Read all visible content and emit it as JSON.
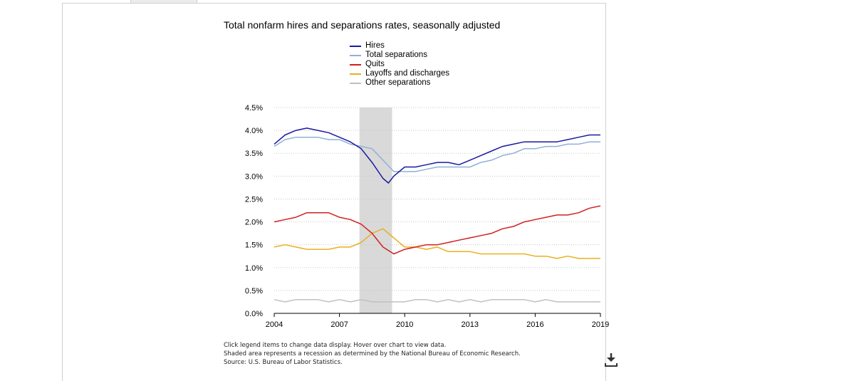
{
  "chart_data": {
    "type": "line",
    "title": "Total nonfarm hires and separations rates, seasonally adjusted",
    "xlabel": "",
    "ylabel": "",
    "x_ticks": [
      "2004",
      "2007",
      "2010",
      "2013",
      "2016",
      "2019"
    ],
    "y_ticks": [
      "0.0%",
      "0.5%",
      "1.0%",
      "1.5%",
      "2.0%",
      "2.5%",
      "3.0%",
      "3.5%",
      "4.0%",
      "4.5%"
    ],
    "xlim": [
      2004,
      2019
    ],
    "ylim": [
      0,
      4.5
    ],
    "recession": [
      2007.92,
      2009.42
    ],
    "grid": "horizontal dotted",
    "legend_position": "top",
    "series": [
      {
        "name": "Hires",
        "color": "#1a1aa0",
        "points": [
          [
            2004,
            3.7
          ],
          [
            2004.5,
            3.9
          ],
          [
            2005,
            4.0
          ],
          [
            2005.5,
            4.05
          ],
          [
            2006,
            4.0
          ],
          [
            2006.5,
            3.95
          ],
          [
            2007,
            3.85
          ],
          [
            2007.5,
            3.75
          ],
          [
            2008,
            3.6
          ],
          [
            2008.5,
            3.3
          ],
          [
            2009,
            2.95
          ],
          [
            2009.25,
            2.85
          ],
          [
            2009.5,
            3.0
          ],
          [
            2010,
            3.2
          ],
          [
            2010.5,
            3.2
          ],
          [
            2011,
            3.25
          ],
          [
            2011.5,
            3.3
          ],
          [
            2012,
            3.3
          ],
          [
            2012.5,
            3.25
          ],
          [
            2013,
            3.35
          ],
          [
            2013.5,
            3.45
          ],
          [
            2014,
            3.55
          ],
          [
            2014.5,
            3.65
          ],
          [
            2015,
            3.7
          ],
          [
            2015.5,
            3.75
          ],
          [
            2016,
            3.75
          ],
          [
            2016.5,
            3.75
          ],
          [
            2017,
            3.75
          ],
          [
            2017.5,
            3.8
          ],
          [
            2018,
            3.85
          ],
          [
            2018.5,
            3.9
          ],
          [
            2019,
            3.9
          ]
        ]
      },
      {
        "name": "Total separations",
        "color": "#8fb0d8",
        "points": [
          [
            2004,
            3.65
          ],
          [
            2004.5,
            3.8
          ],
          [
            2005,
            3.85
          ],
          [
            2005.5,
            3.85
          ],
          [
            2006,
            3.85
          ],
          [
            2006.5,
            3.8
          ],
          [
            2007,
            3.8
          ],
          [
            2007.5,
            3.7
          ],
          [
            2008,
            3.65
          ],
          [
            2008.5,
            3.6
          ],
          [
            2009,
            3.35
          ],
          [
            2009.5,
            3.1
          ],
          [
            2010,
            3.1
          ],
          [
            2010.5,
            3.1
          ],
          [
            2011,
            3.15
          ],
          [
            2011.5,
            3.2
          ],
          [
            2012,
            3.2
          ],
          [
            2012.5,
            3.2
          ],
          [
            2013,
            3.2
          ],
          [
            2013.5,
            3.3
          ],
          [
            2014,
            3.35
          ],
          [
            2014.5,
            3.45
          ],
          [
            2015,
            3.5
          ],
          [
            2015.5,
            3.6
          ],
          [
            2016,
            3.6
          ],
          [
            2016.5,
            3.65
          ],
          [
            2017,
            3.65
          ],
          [
            2017.5,
            3.7
          ],
          [
            2018,
            3.7
          ],
          [
            2018.5,
            3.75
          ],
          [
            2019,
            3.75
          ]
        ]
      },
      {
        "name": "Quits",
        "color": "#d02020",
        "points": [
          [
            2004,
            2.0
          ],
          [
            2004.5,
            2.05
          ],
          [
            2005,
            2.1
          ],
          [
            2005.5,
            2.2
          ],
          [
            2006,
            2.2
          ],
          [
            2006.5,
            2.2
          ],
          [
            2007,
            2.1
          ],
          [
            2007.5,
            2.05
          ],
          [
            2008,
            1.95
          ],
          [
            2008.5,
            1.75
          ],
          [
            2009,
            1.45
          ],
          [
            2009.5,
            1.3
          ],
          [
            2010,
            1.4
          ],
          [
            2010.5,
            1.45
          ],
          [
            2011,
            1.5
          ],
          [
            2011.5,
            1.5
          ],
          [
            2012,
            1.55
          ],
          [
            2012.5,
            1.6
          ],
          [
            2013,
            1.65
          ],
          [
            2013.5,
            1.7
          ],
          [
            2014,
            1.75
          ],
          [
            2014.5,
            1.85
          ],
          [
            2015,
            1.9
          ],
          [
            2015.5,
            2.0
          ],
          [
            2016,
            2.05
          ],
          [
            2016.5,
            2.1
          ],
          [
            2017,
            2.15
          ],
          [
            2017.5,
            2.15
          ],
          [
            2018,
            2.2
          ],
          [
            2018.5,
            2.3
          ],
          [
            2019,
            2.35
          ]
        ]
      },
      {
        "name": "Layoffs and discharges",
        "color": "#e8b020",
        "points": [
          [
            2004,
            1.45
          ],
          [
            2004.5,
            1.5
          ],
          [
            2005,
            1.45
          ],
          [
            2005.5,
            1.4
          ],
          [
            2006,
            1.4
          ],
          [
            2006.5,
            1.4
          ],
          [
            2007,
            1.45
          ],
          [
            2007.5,
            1.45
          ],
          [
            2008,
            1.55
          ],
          [
            2008.5,
            1.75
          ],
          [
            2009,
            1.85
          ],
          [
            2009.5,
            1.65
          ],
          [
            2010,
            1.45
          ],
          [
            2010.5,
            1.45
          ],
          [
            2011,
            1.4
          ],
          [
            2011.5,
            1.45
          ],
          [
            2012,
            1.35
          ],
          [
            2012.5,
            1.35
          ],
          [
            2013,
            1.35
          ],
          [
            2013.5,
            1.3
          ],
          [
            2014,
            1.3
          ],
          [
            2014.5,
            1.3
          ],
          [
            2015,
            1.3
          ],
          [
            2015.5,
            1.3
          ],
          [
            2016,
            1.25
          ],
          [
            2016.5,
            1.25
          ],
          [
            2017,
            1.2
          ],
          [
            2017.5,
            1.25
          ],
          [
            2018,
            1.2
          ],
          [
            2018.5,
            1.2
          ],
          [
            2019,
            1.2
          ]
        ]
      },
      {
        "name": "Other separations",
        "color": "#c0c0c0",
        "points": [
          [
            2004,
            0.3
          ],
          [
            2004.5,
            0.25
          ],
          [
            2005,
            0.3
          ],
          [
            2005.5,
            0.3
          ],
          [
            2006,
            0.3
          ],
          [
            2006.5,
            0.25
          ],
          [
            2007,
            0.3
          ],
          [
            2007.5,
            0.25
          ],
          [
            2008,
            0.3
          ],
          [
            2008.5,
            0.25
          ],
          [
            2009,
            0.25
          ],
          [
            2009.5,
            0.25
          ],
          [
            2010,
            0.25
          ],
          [
            2010.5,
            0.3
          ],
          [
            2011,
            0.3
          ],
          [
            2011.5,
            0.25
          ],
          [
            2012,
            0.3
          ],
          [
            2012.5,
            0.25
          ],
          [
            2013,
            0.3
          ],
          [
            2013.5,
            0.25
          ],
          [
            2014,
            0.3
          ],
          [
            2014.5,
            0.3
          ],
          [
            2015,
            0.3
          ],
          [
            2015.5,
            0.3
          ],
          [
            2016,
            0.25
          ],
          [
            2016.5,
            0.3
          ],
          [
            2017,
            0.25
          ],
          [
            2017.5,
            0.25
          ],
          [
            2018,
            0.25
          ],
          [
            2018.5,
            0.25
          ],
          [
            2019,
            0.25
          ]
        ]
      }
    ]
  },
  "notes": {
    "line1": "Click legend items to change data display. Hover over chart to view data.",
    "line2": "Shaded area represents a recession as determined by the National Bureau of Economic Research.",
    "line3": "Source: U.S. Bureau of Labor Statistics."
  },
  "download_icon": "download-icon"
}
